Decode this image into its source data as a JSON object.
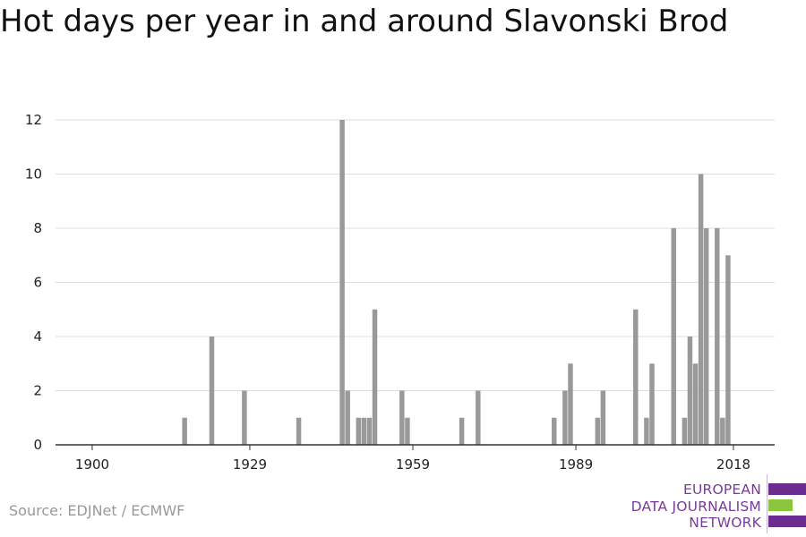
{
  "title": "Hot days per year in and around Slavonski Brod",
  "source": "Source: EDJNet / ECMWF",
  "logo": {
    "lines": [
      "EUROPEAN",
      "DATA JOURNALISM",
      "NETWORK"
    ],
    "colors": {
      "text": "#7a3a9a",
      "purple": "#6b2c8f",
      "green": "#8cc63f"
    }
  },
  "chart_data": {
    "type": "bar",
    "title": "Hot days per year in and around Slavonski Brod",
    "xlabel": "",
    "ylabel": "",
    "xlim": [
      1894,
      2025
    ],
    "ylim": [
      0,
      12
    ],
    "yticks": [
      0,
      2,
      4,
      6,
      8,
      10,
      12
    ],
    "xticks": [
      1900,
      1929,
      1959,
      1989,
      2018
    ],
    "grid": true,
    "bar_color": "#999999",
    "x": [
      1917,
      1922,
      1928,
      1938,
      1946,
      1947,
      1949,
      1950,
      1951,
      1952,
      1957,
      1958,
      1968,
      1971,
      1985,
      1987,
      1988,
      1993,
      1994,
      2000,
      2002,
      2003,
      2007,
      2009,
      2010,
      2011,
      2012,
      2013,
      2015,
      2016,
      2017
    ],
    "values": [
      1,
      4,
      2,
      1,
      12,
      2,
      1,
      1,
      1,
      5,
      2,
      1,
      1,
      2,
      1,
      2,
      3,
      1,
      2,
      5,
      1,
      3,
      8,
      1,
      4,
      3,
      10,
      8,
      8,
      1,
      7
    ]
  }
}
